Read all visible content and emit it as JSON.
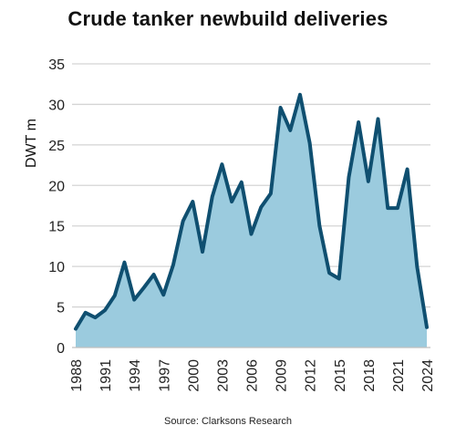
{
  "chart_data": {
    "type": "area",
    "title": "Crude tanker newbuild deliveries",
    "ylabel": "DWT m",
    "xlabel": "",
    "source": "Source: Clarksons Research",
    "ylim": [
      0,
      35
    ],
    "yticks": [
      0,
      5,
      10,
      15,
      20,
      25,
      30,
      35
    ],
    "xticks": [
      1988,
      1991,
      1994,
      1997,
      2000,
      2003,
      2006,
      2009,
      2012,
      2015,
      2018,
      2021,
      2024
    ],
    "grid": true,
    "legend": "none",
    "colors": {
      "line": "#0f4f70",
      "fill": "#9bcbde",
      "grid": "#d4d4d4"
    },
    "x": [
      1988,
      1989,
      1990,
      1991,
      1992,
      1993,
      1994,
      1995,
      1996,
      1997,
      1998,
      1999,
      2000,
      2001,
      2002,
      2003,
      2004,
      2005,
      2006,
      2007,
      2008,
      2009,
      2010,
      2011,
      2012,
      2013,
      2014,
      2015,
      2016,
      2017,
      2018,
      2019,
      2020,
      2021,
      2022,
      2023,
      2024
    ],
    "series": [
      {
        "values": [
          2.3,
          4.3,
          3.7,
          4.6,
          6.4,
          10.5,
          5.9,
          7.4,
          9.0,
          6.5,
          10.2,
          15.6,
          18.0,
          11.8,
          18.6,
          22.6,
          18.0,
          20.4,
          14.0,
          17.3,
          19.0,
          29.6,
          26.8,
          31.2,
          25.2,
          15.0,
          9.2,
          8.5,
          21.0,
          27.8,
          20.5,
          28.2,
          17.2,
          17.2,
          22.0,
          10.0,
          2.5
        ]
      }
    ]
  }
}
